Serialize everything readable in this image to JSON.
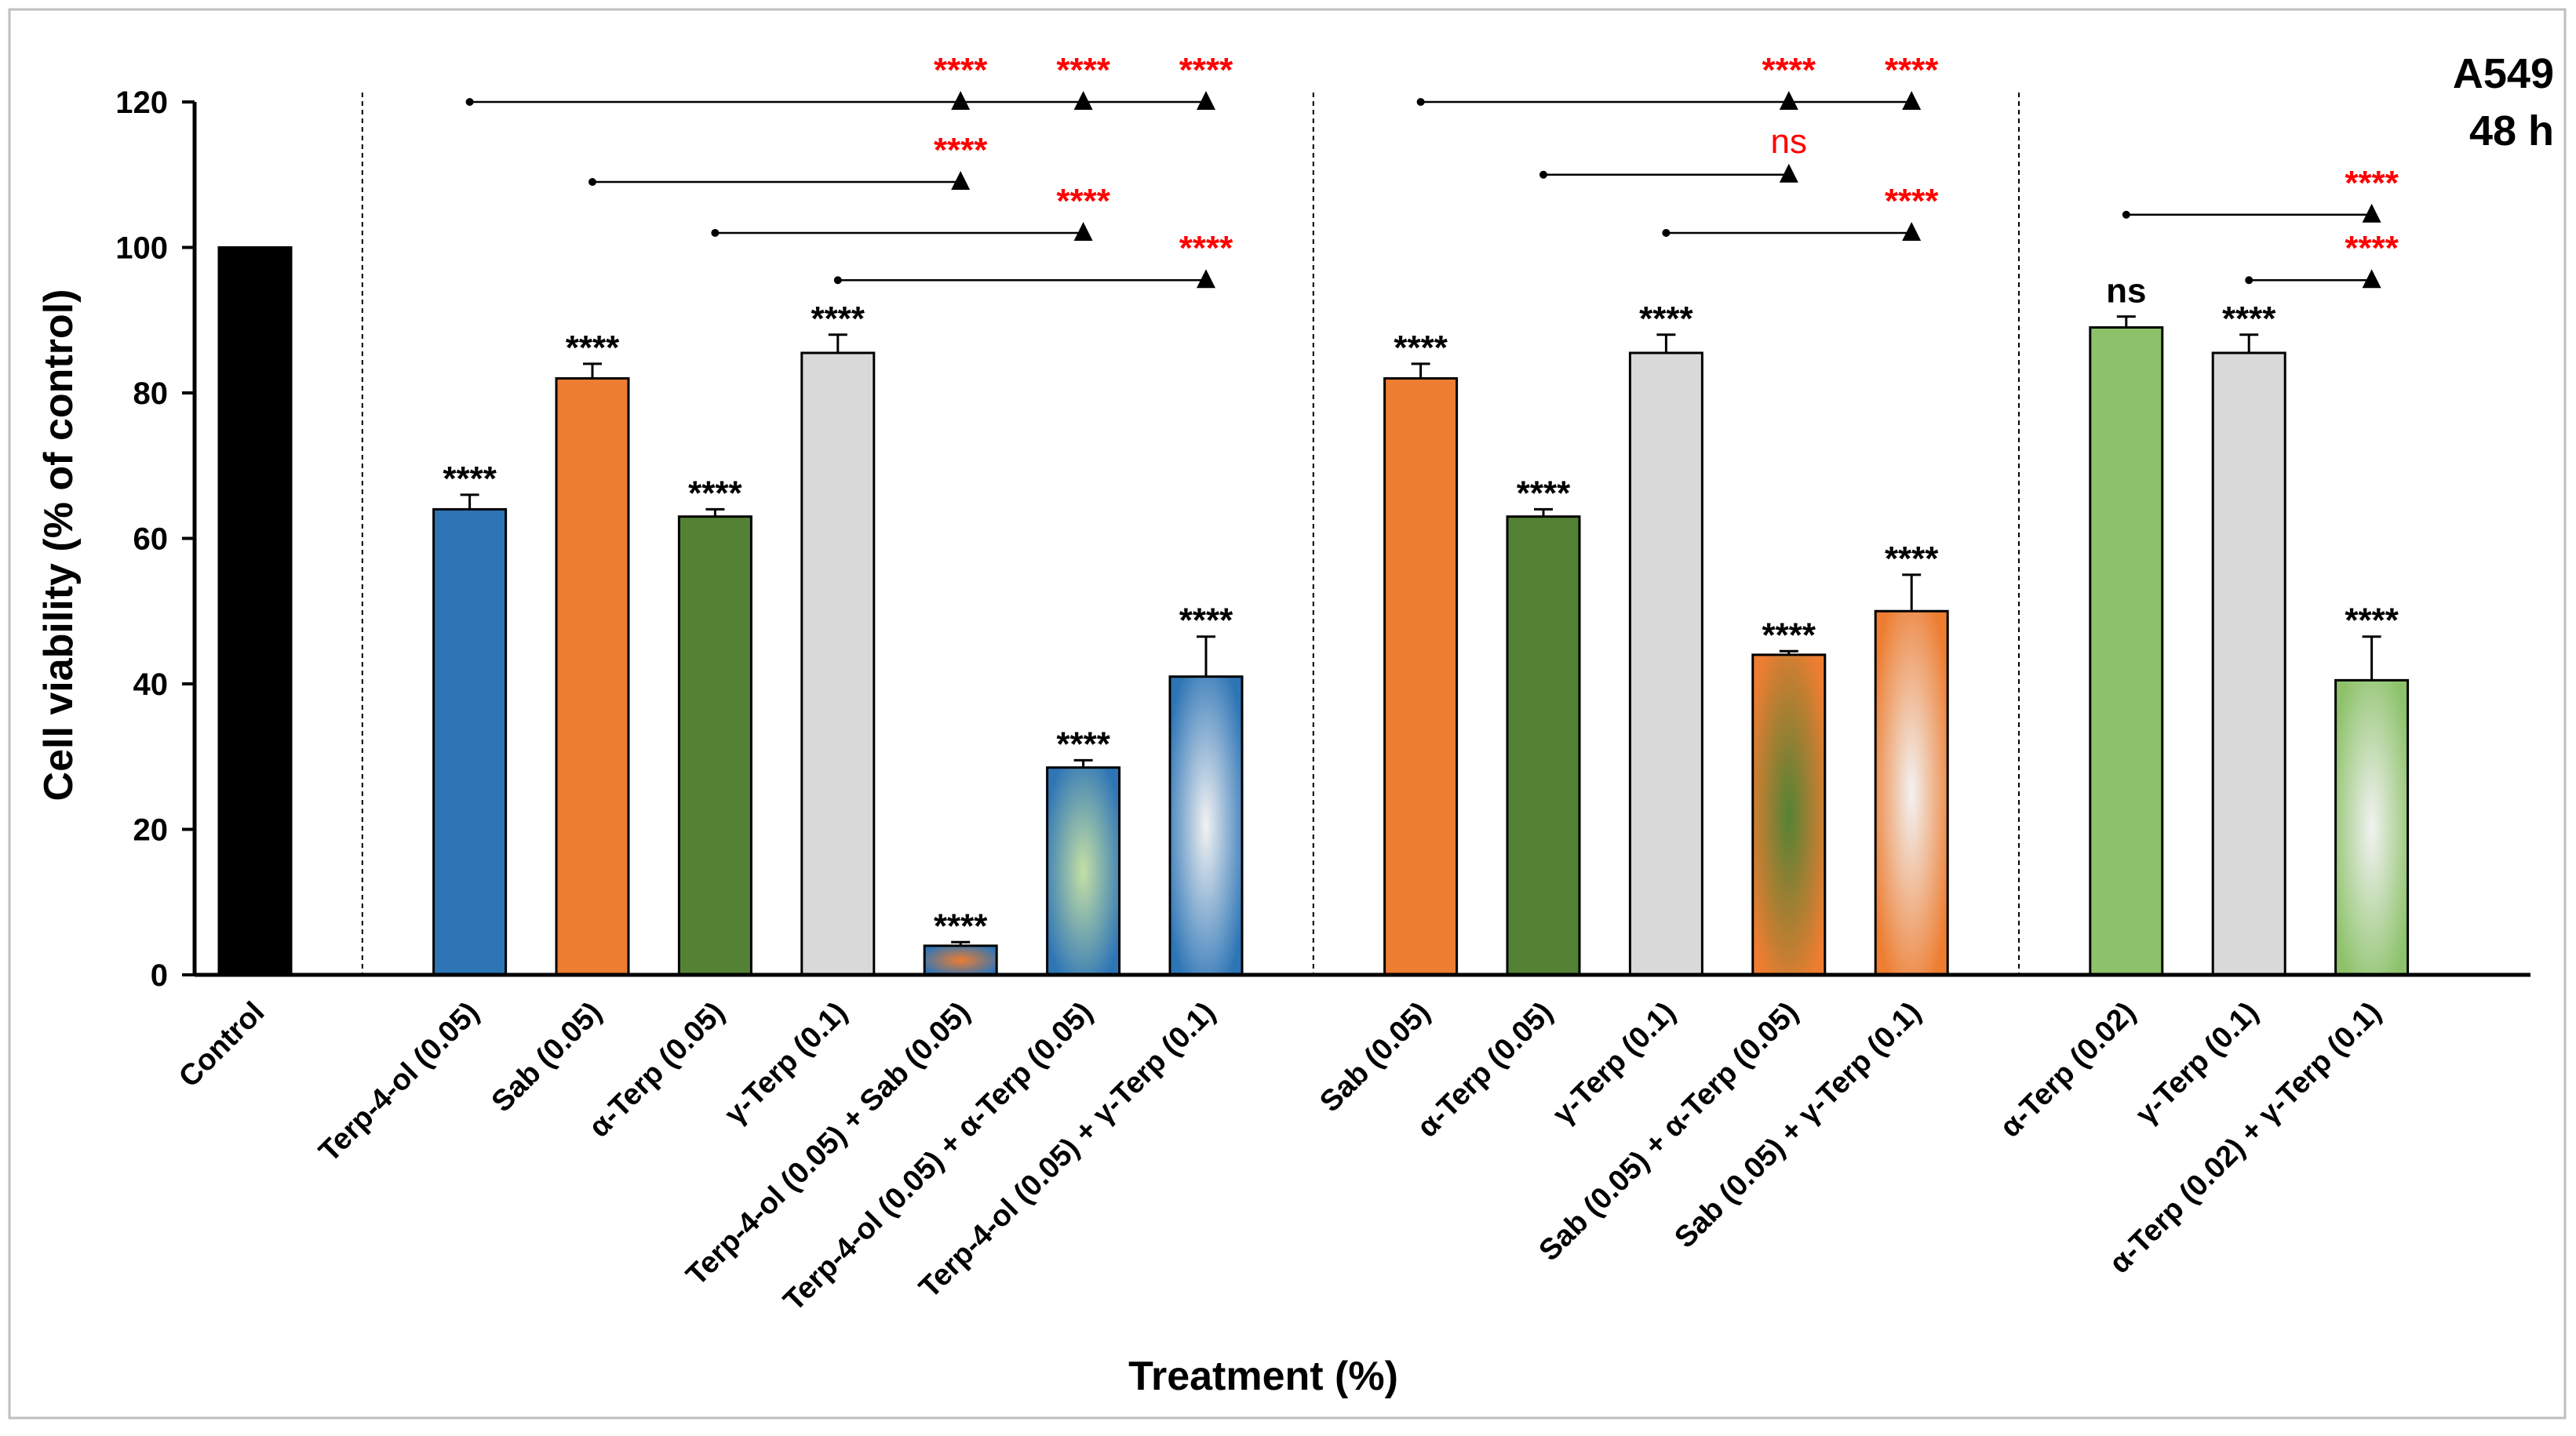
{
  "chart_data": {
    "type": "bar",
    "corner_label": [
      "A549",
      "48 h"
    ],
    "xlabel": "Treatment (%)",
    "ylabel": "Cell viability (% of control)",
    "ylim": [
      0,
      120
    ],
    "yticks": [
      0,
      20,
      40,
      60,
      80,
      100,
      120
    ],
    "ytick_labels": [
      "0",
      "20",
      "40",
      "60",
      "80",
      "100",
      "120"
    ],
    "groups": [
      {
        "bars": [
          {
            "label": "Control",
            "value": 100,
            "error": 0,
            "sig": "",
            "fill": "solid",
            "color": "#000000"
          }
        ]
      },
      {
        "bars": [
          {
            "label": "Terp-4-ol (0.05)",
            "value": 64,
            "error": 2,
            "sig": "****",
            "fill": "solid",
            "color": "#2e75b6"
          },
          {
            "label": "Sab (0.05)",
            "value": 82,
            "error": 2,
            "sig": "****",
            "fill": "solid",
            "color": "#ed7d31"
          },
          {
            "label": "α-Terp (0.05)",
            "value": 63,
            "error": 1,
            "sig": "****",
            "fill": "solid",
            "color": "#548235"
          },
          {
            "label": "γ-Terp (0.1)",
            "value": 85.5,
            "error": 2.5,
            "sig": "****",
            "fill": "solid",
            "color": "#d9d9d9"
          },
          {
            "label": "Terp-4-ol (0.05) + Sab (0.05)",
            "value": 4,
            "error": 0.5,
            "sig": "****",
            "fill": "gradient",
            "color": "#2e75b6",
            "accent": "#ed7d31"
          },
          {
            "label": "Terp-4-ol (0.05) + α-Terp (0.05)",
            "value": 28.5,
            "error": 1,
            "sig": "****",
            "fill": "gradient",
            "color": "#2e75b6",
            "accent": "#c5e0a5"
          },
          {
            "label": "Terp-4-ol (0.05) + γ-Terp (0.1)",
            "value": 41,
            "error": 5.5,
            "sig": "****",
            "fill": "gradient",
            "color": "#2e75b6",
            "accent": "#f2f2f2"
          }
        ]
      },
      {
        "bars": [
          {
            "label": "Sab (0.05)",
            "value": 82,
            "error": 2,
            "sig": "****",
            "fill": "solid",
            "color": "#ed7d31"
          },
          {
            "label": "α-Terp (0.05)",
            "value": 63,
            "error": 1,
            "sig": "****",
            "fill": "solid",
            "color": "#548235"
          },
          {
            "label": "γ-Terp (0.1)",
            "value": 85.5,
            "error": 2.5,
            "sig": "****",
            "fill": "solid",
            "color": "#d9d9d9"
          },
          {
            "label": "Sab (0.05) + α-Terp (0.05)",
            "value": 44,
            "error": 0.5,
            "sig": "****",
            "fill": "gradient",
            "color": "#ed7d31",
            "accent": "#548235"
          },
          {
            "label": "Sab (0.05) + γ-Terp (0.1)",
            "value": 50,
            "error": 5,
            "sig": "****",
            "fill": "gradient",
            "color": "#ed7d31",
            "accent": "#f2f2f2"
          }
        ]
      },
      {
        "bars": [
          {
            "label": "α-Terp (0.02)",
            "value": 89,
            "error": 1.5,
            "sig": "ns",
            "fill": "solid",
            "color": "#8dc26a"
          },
          {
            "label": "γ-Terp (0.1)",
            "value": 85.5,
            "error": 2.5,
            "sig": "****",
            "fill": "solid",
            "color": "#d9d9d9"
          },
          {
            "label": "α-Terp (0.02) + γ-Terp (0.1)",
            "value": 40.5,
            "error": 6,
            "sig": "****",
            "fill": "gradient",
            "color": "#8dc26a",
            "accent": "#f2f2f2"
          }
        ]
      }
    ],
    "comparisons": [
      {
        "from": [
          1,
          0
        ],
        "targets": [
          [
            1,
            4
          ],
          [
            1,
            5
          ],
          [
            1,
            6
          ]
        ],
        "level": 120,
        "labels": [
          "****",
          "****",
          "****"
        ]
      },
      {
        "from": [
          1,
          1
        ],
        "targets": [
          [
            1,
            4
          ]
        ],
        "level": 109,
        "labels": [
          "****"
        ]
      },
      {
        "from": [
          1,
          2
        ],
        "targets": [
          [
            1,
            5
          ]
        ],
        "level": 102,
        "labels": [
          "****"
        ]
      },
      {
        "from": [
          1,
          3
        ],
        "targets": [
          [
            1,
            6
          ]
        ],
        "level": 95.5,
        "labels": [
          "****"
        ]
      },
      {
        "from": [
          2,
          0
        ],
        "targets": [
          [
            2,
            3
          ],
          [
            2,
            4
          ]
        ],
        "level": 120,
        "labels": [
          "****",
          "****"
        ]
      },
      {
        "from": [
          2,
          1
        ],
        "targets": [
          [
            2,
            3
          ]
        ],
        "level": 110,
        "labels": [
          "ns"
        ]
      },
      {
        "from": [
          2,
          2
        ],
        "targets": [
          [
            2,
            4
          ]
        ],
        "level": 102,
        "labels": [
          "****"
        ]
      },
      {
        "from": [
          3,
          0
        ],
        "targets": [
          [
            3,
            2
          ]
        ],
        "level": 104.5,
        "labels": [
          "****"
        ]
      },
      {
        "from": [
          3,
          1
        ],
        "targets": [
          [
            3,
            2
          ]
        ],
        "level": 95.5,
        "labels": [
          "****"
        ]
      }
    ]
  }
}
